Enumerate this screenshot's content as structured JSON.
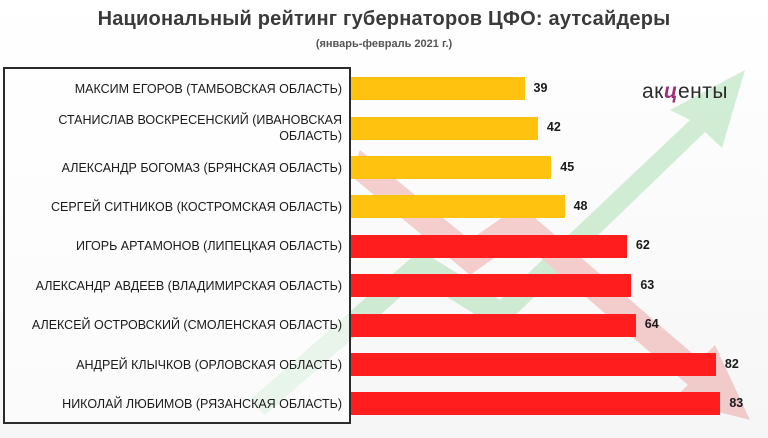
{
  "chart_data": {
    "type": "bar",
    "orientation": "horizontal",
    "title": "Национальный рейтинг губернаторов ЦФО: аутсайдеры",
    "subtitle": "(январь-февраль 2021 г.)",
    "categories": [
      "МАКСИМ ЕГОРОВ (ТАМБОВСКАЯ ОБЛАСТЬ)",
      "СТАНИСЛАВ ВОСКРЕСЕНСКИЙ (ИВАНОВСКАЯ ОБЛАСТЬ)",
      "АЛЕКСАНДР БОГОМАЗ (БРЯНСКАЯ ОБЛАСТЬ)",
      "СЕРГЕЙ СИТНИКОВ (КОСТРОМСКАЯ ОБЛАСТЬ)",
      "ИГОРЬ АРТАМОНОВ (ЛИПЕЦКАЯ ОБЛАСТЬ)",
      "АЛЕКСАНДР АВДЕЕВ (ВЛАДИМИРСКАЯ ОБЛАСТЬ)",
      "АЛЕКСЕЙ ОСТРОВСКИЙ (СМОЛЕНСКАЯ ОБЛАСТЬ)",
      "АНДРЕЙ КЛЫЧКОВ (ОРЛОВСКАЯ ОБЛАСТЬ)",
      "НИКОЛАЙ ЛЮБИМОВ (РЯЗАНСКАЯ ОБЛАСТЬ)"
    ],
    "values": [
      39,
      42,
      45,
      48,
      62,
      63,
      64,
      82,
      83
    ],
    "bar_colors": [
      "#ffc20e",
      "#ffc20e",
      "#ffc20e",
      "#ffc20e",
      "#ff1d1d",
      "#ff1d1d",
      "#ff1d1d",
      "#ff1d1d",
      "#ff1d1d"
    ],
    "data_labels": true,
    "grid": false,
    "legend": "none"
  },
  "logo": {
    "before": "ак",
    "accent": "ц",
    "after": "енты"
  }
}
